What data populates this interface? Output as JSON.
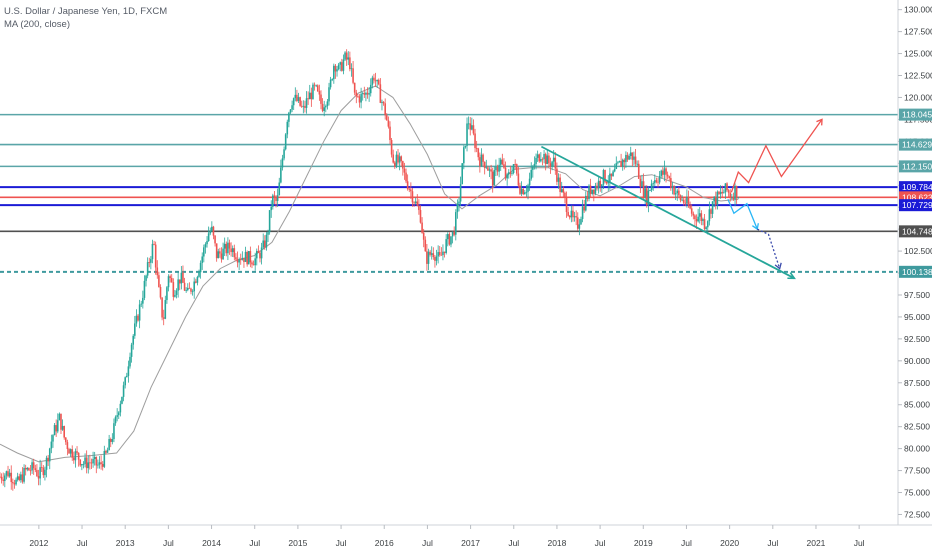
{
  "chart_data": {
    "type": "line",
    "title": "U.S. Dollar / Japanese Yen, 1D, FXCM",
    "indicator": "MA (200, close)",
    "y_ticks": [
      72.5,
      75.0,
      77.5,
      80.0,
      82.5,
      85.0,
      87.5,
      90.0,
      92.5,
      95.0,
      97.5,
      100.0,
      102.5,
      105.0,
      107.5,
      110.0,
      112.5,
      115.0,
      117.5,
      120.0,
      122.5,
      125.0,
      127.5,
      130.0
    ],
    "y_tick_labels": [
      "72.500",
      "75.000",
      "77.500",
      "80.000",
      "82.500",
      "85.000",
      "87.500",
      "90.000",
      "92.500",
      "95.000",
      "97.500",
      "100.000",
      "102.500",
      "105.000",
      "107.500",
      "110.000",
      "112.500",
      "115.000",
      "117.500",
      "120.000",
      "122.500",
      "125.000",
      "127.500",
      "130.000"
    ],
    "ylim": [
      71.3,
      131.1
    ],
    "xlim": [
      2011.55,
      2021.95
    ],
    "x_ticks": [
      {
        "label": "2012",
        "x": 2012.0
      },
      {
        "label": "Jul",
        "x": 2012.5
      },
      {
        "label": "2013",
        "x": 2013.0
      },
      {
        "label": "Jul",
        "x": 2013.5
      },
      {
        "label": "2014",
        "x": 2014.0
      },
      {
        "label": "Jul",
        "x": 2014.5
      },
      {
        "label": "2015",
        "x": 2015.0
      },
      {
        "label": "Jul",
        "x": 2015.5
      },
      {
        "label": "2016",
        "x": 2016.0
      },
      {
        "label": "Jul",
        "x": 2016.5
      },
      {
        "label": "2017",
        "x": 2017.0
      },
      {
        "label": "Jul",
        "x": 2017.5
      },
      {
        "label": "2018",
        "x": 2018.0
      },
      {
        "label": "Jul",
        "x": 2018.5
      },
      {
        "label": "2019",
        "x": 2019.0
      },
      {
        "label": "Jul",
        "x": 2019.5
      },
      {
        "label": "2020",
        "x": 2020.0
      },
      {
        "label": "Jul",
        "x": 2020.5
      },
      {
        "label": "2021",
        "x": 2021.0
      },
      {
        "label": "Jul",
        "x": 2021.5
      }
    ],
    "grid": false,
    "price_series": [
      [
        2011.55,
        76.8
      ],
      [
        2011.65,
        77.3
      ],
      [
        2011.75,
        76.0
      ],
      [
        2011.85,
        77.5
      ],
      [
        2011.95,
        77.8
      ],
      [
        2012.0,
        76.9
      ],
      [
        2012.08,
        78.2
      ],
      [
        2012.16,
        81.5
      ],
      [
        2012.24,
        83.5
      ],
      [
        2012.3,
        81.0
      ],
      [
        2012.36,
        79.8
      ],
      [
        2012.44,
        79.2
      ],
      [
        2012.52,
        78.3
      ],
      [
        2012.6,
        78.5
      ],
      [
        2012.7,
        78.0
      ],
      [
        2012.78,
        79.3
      ],
      [
        2012.86,
        81.8
      ],
      [
        2012.93,
        85.0
      ],
      [
        2013.0,
        87.5
      ],
      [
        2013.06,
        91.5
      ],
      [
        2013.12,
        94.0
      ],
      [
        2013.2,
        97.5
      ],
      [
        2013.28,
        101.5
      ],
      [
        2013.33,
        103.5
      ],
      [
        2013.38,
        98.5
      ],
      [
        2013.44,
        94.5
      ],
      [
        2013.5,
        100.0
      ],
      [
        2013.56,
        98.0
      ],
      [
        2013.64,
        99.5
      ],
      [
        2013.72,
        97.5
      ],
      [
        2013.8,
        99.0
      ],
      [
        2013.88,
        101.5
      ],
      [
        2013.96,
        104.5
      ],
      [
        2014.0,
        105.0
      ],
      [
        2014.06,
        102.0
      ],
      [
        2014.14,
        102.5
      ],
      [
        2014.22,
        103.0
      ],
      [
        2014.3,
        102.0
      ],
      [
        2014.4,
        101.8
      ],
      [
        2014.5,
        101.5
      ],
      [
        2014.58,
        102.5
      ],
      [
        2014.64,
        104.0
      ],
      [
        2014.7,
        108.5
      ],
      [
        2014.76,
        108.0
      ],
      [
        2014.82,
        113.0
      ],
      [
        2014.88,
        118.0
      ],
      [
        2014.94,
        120.0
      ],
      [
        2015.0,
        119.5
      ],
      [
        2015.06,
        118.5
      ],
      [
        2015.12,
        120.0
      ],
      [
        2015.2,
        121.0
      ],
      [
        2015.28,
        119.0
      ],
      [
        2015.36,
        120.5
      ],
      [
        2015.42,
        124.0
      ],
      [
        2015.48,
        123.0
      ],
      [
        2015.54,
        124.5
      ],
      [
        2015.6,
        124.0
      ],
      [
        2015.66,
        120.0
      ],
      [
        2015.72,
        120.0
      ],
      [
        2015.8,
        120.5
      ],
      [
        2015.88,
        122.5
      ],
      [
        2015.96,
        120.0
      ],
      [
        2016.02,
        118.0
      ],
      [
        2016.1,
        113.0
      ],
      [
        2016.18,
        112.5
      ],
      [
        2016.26,
        110.5
      ],
      [
        2016.34,
        108.5
      ],
      [
        2016.42,
        106.5
      ],
      [
        2016.48,
        101.5
      ],
      [
        2016.56,
        102.5
      ],
      [
        2016.64,
        101.5
      ],
      [
        2016.72,
        103.5
      ],
      [
        2016.8,
        104.5
      ],
      [
        2016.86,
        108.0
      ],
      [
        2016.92,
        113.5
      ],
      [
        2016.97,
        117.5
      ],
      [
        2017.02,
        116.0
      ],
      [
        2017.1,
        113.0
      ],
      [
        2017.18,
        112.5
      ],
      [
        2017.26,
        110.5
      ],
      [
        2017.34,
        113.0
      ],
      [
        2017.42,
        110.5
      ],
      [
        2017.5,
        112.5
      ],
      [
        2017.58,
        109.5
      ],
      [
        2017.66,
        109.8
      ],
      [
        2017.74,
        112.5
      ],
      [
        2017.82,
        113.8
      ],
      [
        2017.9,
        112.5
      ],
      [
        2017.96,
        112.8
      ],
      [
        2018.04,
        109.5
      ],
      [
        2018.1,
        108.0
      ],
      [
        2018.18,
        106.0
      ],
      [
        2018.24,
        105.5
      ],
      [
        2018.3,
        107.5
      ],
      [
        2018.38,
        109.5
      ],
      [
        2018.46,
        110.0
      ],
      [
        2018.54,
        111.0
      ],
      [
        2018.62,
        110.5
      ],
      [
        2018.7,
        112.0
      ],
      [
        2018.78,
        113.0
      ],
      [
        2018.86,
        113.5
      ],
      [
        2018.92,
        112.5
      ],
      [
        2018.98,
        110.0
      ],
      [
        2019.04,
        108.5
      ],
      [
        2019.1,
        110.5
      ],
      [
        2019.18,
        111.0
      ],
      [
        2019.26,
        111.5
      ],
      [
        2019.34,
        109.8
      ],
      [
        2019.42,
        108.5
      ],
      [
        2019.5,
        108.0
      ],
      [
        2019.58,
        106.5
      ],
      [
        2019.66,
        106.5
      ],
      [
        2019.72,
        105.5
      ],
      [
        2019.8,
        108.0
      ],
      [
        2019.88,
        108.8
      ],
      [
        2019.96,
        109.5
      ],
      [
        2020.02,
        108.8
      ],
      [
        2020.06,
        109.5
      ],
      [
        2020.1,
        109.0
      ]
    ],
    "ma200_series": [
      [
        2011.55,
        80.5
      ],
      [
        2011.75,
        79.5
      ],
      [
        2012.0,
        78.5
      ],
      [
        2012.3,
        79.0
      ],
      [
        2012.6,
        79.2
      ],
      [
        2012.9,
        79.5
      ],
      [
        2013.1,
        82.0
      ],
      [
        2013.3,
        87.0
      ],
      [
        2013.5,
        91.0
      ],
      [
        2013.7,
        95.0
      ],
      [
        2013.9,
        98.5
      ],
      [
        2014.1,
        100.5
      ],
      [
        2014.3,
        101.5
      ],
      [
        2014.5,
        102.0
      ],
      [
        2014.7,
        103.5
      ],
      [
        2014.9,
        107.0
      ],
      [
        2015.1,
        111.0
      ],
      [
        2015.3,
        115.0
      ],
      [
        2015.5,
        118.5
      ],
      [
        2015.7,
        120.5
      ],
      [
        2015.9,
        121.3
      ],
      [
        2016.1,
        120.0
      ],
      [
        2016.3,
        117.0
      ],
      [
        2016.5,
        113.5
      ],
      [
        2016.7,
        109.0
      ],
      [
        2016.9,
        107.3
      ],
      [
        2017.1,
        108.8
      ],
      [
        2017.3,
        110.0
      ],
      [
        2017.5,
        111.8
      ],
      [
        2017.7,
        112.0
      ],
      [
        2017.9,
        112.0
      ],
      [
        2018.1,
        111.3
      ],
      [
        2018.3,
        109.5
      ],
      [
        2018.5,
        108.8
      ],
      [
        2018.7,
        109.8
      ],
      [
        2018.9,
        111.0
      ],
      [
        2019.1,
        111.2
      ],
      [
        2019.3,
        110.5
      ],
      [
        2019.5,
        109.8
      ],
      [
        2019.7,
        108.6
      ],
      [
        2019.9,
        108.2
      ],
      [
        2020.1,
        108.4
      ]
    ],
    "horizontal_levels": [
      {
        "value": 118.045,
        "label": "118.045",
        "color": "#5aa5a8",
        "style": "solid"
      },
      {
        "value": 114.629,
        "label": "114.629",
        "color": "#5aa5a8",
        "style": "solid"
      },
      {
        "value": 112.15,
        "label": "112.150",
        "color": "#5aa5a8",
        "style": "solid"
      },
      {
        "value": 109.784,
        "label": "109.784",
        "color": "#1b1bd6",
        "style": "solid"
      },
      {
        "value": 108.623,
        "label": "108.623",
        "color": "#ef5350",
        "style": "solid"
      },
      {
        "value": 107.729,
        "label": "107.729",
        "color": "#1b1bd6",
        "style": "solid"
      },
      {
        "value": 104.748,
        "label": "104.748",
        "color": "#505050",
        "style": "solid"
      },
      {
        "value": 100.138,
        "label": "100.138",
        "color": "#3f9a9e",
        "style": "dashed"
      }
    ],
    "trendline": {
      "x1": 2017.82,
      "y1": 114.4,
      "x2": 2020.75,
      "y2": 99.4,
      "color": "#26a69a"
    },
    "projection_paths": [
      {
        "color": "#ef5350",
        "points": [
          [
            2020.02,
            109.2
          ],
          [
            2020.1,
            111.5
          ],
          [
            2020.22,
            110.3
          ],
          [
            2020.42,
            114.5
          ],
          [
            2020.6,
            111.0
          ],
          [
            2021.07,
            117.5
          ]
        ]
      },
      {
        "color": "#29b6f6",
        "points": [
          [
            2019.98,
            108.4
          ],
          [
            2020.05,
            106.8
          ],
          [
            2020.2,
            107.9
          ],
          [
            2020.32,
            105.0
          ]
        ]
      },
      {
        "color": "#3949ab",
        "points": [
          [
            2020.32,
            105.0
          ],
          [
            2020.45,
            104.4
          ],
          [
            2020.58,
            100.5
          ]
        ],
        "dashed": true
      }
    ],
    "colors": {
      "up": "#26a69a",
      "down": "#ef5350",
      "ma": "#9e9e9e",
      "axis_text": "#3c4043"
    }
  }
}
